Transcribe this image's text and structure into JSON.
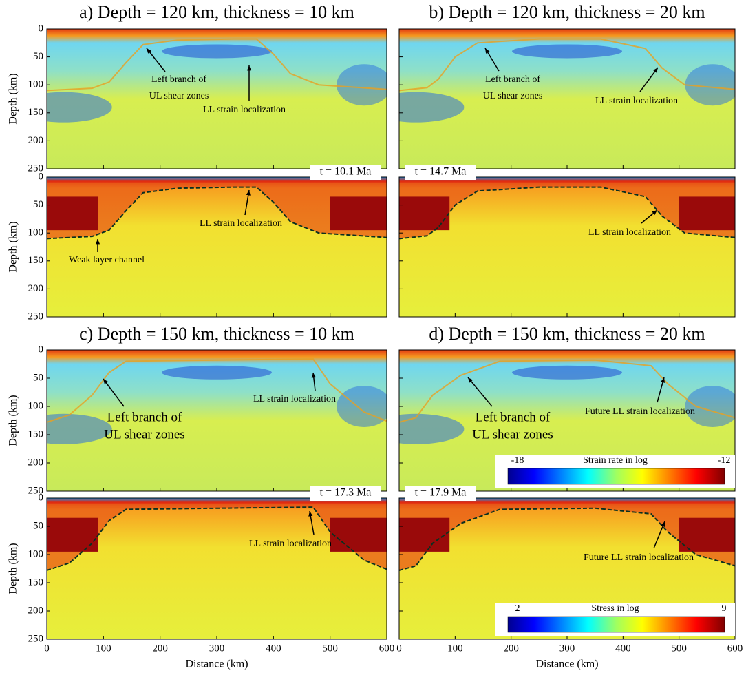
{
  "axes": {
    "xlabel": "Distance (km)",
    "ylabel": "Depth (km)",
    "xlim": [
      0,
      600
    ],
    "xticks": [
      0,
      100,
      200,
      300,
      400,
      500,
      600
    ],
    "ylim": [
      0,
      250
    ],
    "yticks": [
      0,
      50,
      100,
      150,
      200,
      250
    ]
  },
  "panels": [
    {
      "title": "a) Depth = 120 km, thickness = 10 km",
      "time": "t = 10.1 Ma",
      "strain": {
        "annotations": [
          {
            "lines": [
              "Left branch of",
              "UL shear zones"
            ]
          },
          {
            "lines": [
              "LL strain localization"
            ]
          }
        ]
      },
      "stress": {
        "annotations": [
          {
            "lines": [
              "LL strain localization"
            ]
          },
          {
            "lines": [
              "Weak layer channel"
            ]
          }
        ]
      }
    },
    {
      "title": "b) Depth = 120 km, thickness = 20 km",
      "time": "t = 14.7 Ma",
      "strain": {
        "annotations": [
          {
            "lines": [
              "Left branch of",
              "UL shear zones"
            ]
          },
          {
            "lines": [
              "LL strain localization"
            ]
          }
        ]
      },
      "stress": {
        "annotations": [
          {
            "lines": [
              "LL strain localization"
            ]
          }
        ]
      }
    },
    {
      "title": "c) Depth = 150 km, thickness = 10 km",
      "time": "t = 17.3 Ma",
      "strain": {
        "annotations": [
          {
            "lines": [
              "LL strain localization"
            ]
          },
          {
            "lines": [
              "Left branch of",
              "UL shear zones"
            ]
          }
        ]
      },
      "stress": {
        "annotations": [
          {
            "lines": [
              "LL strain localization"
            ]
          }
        ]
      }
    },
    {
      "title": "d) Depth = 150 km, thickness = 20 km",
      "time": "t = 17.9 Ma",
      "strain": {
        "annotations": [
          {
            "lines": [
              "Left branch of",
              "UL shear zones"
            ]
          },
          {
            "lines": [
              "Future LL strain localization"
            ]
          }
        ],
        "colorbar": {
          "label": "Strain rate in log",
          "min": -18,
          "max": -12
        }
      },
      "stress": {
        "annotations": [
          {
            "lines": [
              "Future LL strain localization"
            ]
          }
        ],
        "colorbar": {
          "label": "Stress in log",
          "min": 2,
          "max": 9
        }
      }
    }
  ]
}
